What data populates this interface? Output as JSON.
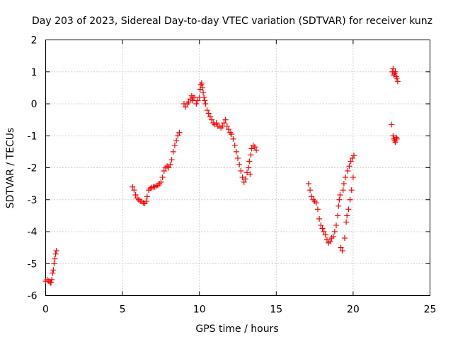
{
  "chart_data": {
    "type": "scatter",
    "title": "Day 203 of 2023, Sidereal Day-to-day VTEC variation (SDTVAR) for receiver kunz",
    "xlabel": "GPS time / hours",
    "ylabel": "SDTVAR / TECUs",
    "xlim": [
      0,
      25
    ],
    "ylim": [
      -6,
      2
    ],
    "xticks": [
      0,
      5,
      10,
      15,
      20,
      25
    ],
    "yticks": [
      -6,
      -5,
      -4,
      -3,
      -2,
      -1,
      0,
      1,
      2
    ],
    "xtick_labels": [
      "0",
      "5",
      "10",
      "15",
      "20",
      "25"
    ],
    "ytick_labels": [
      "-6",
      "-5",
      "-4",
      "-3",
      "-2",
      "-1",
      "0",
      "1",
      "2"
    ],
    "grid": true,
    "legend": "none",
    "marker": "+",
    "color": "#ff0000",
    "series": [
      {
        "points": [
          [
            0.0,
            -5.55
          ],
          [
            0.1,
            -5.5
          ],
          [
            0.2,
            -5.55
          ],
          [
            0.3,
            -5.6
          ],
          [
            0.35,
            -5.6
          ],
          [
            0.4,
            -5.5
          ],
          [
            0.45,
            -5.3
          ],
          [
            0.5,
            -5.2
          ],
          [
            0.55,
            -5.0
          ],
          [
            0.6,
            -4.85
          ],
          [
            0.65,
            -4.7
          ],
          [
            0.7,
            -4.6
          ]
        ]
      },
      {
        "points": [
          [
            5.65,
            -2.6
          ],
          [
            5.75,
            -2.7
          ],
          [
            5.85,
            -2.85
          ],
          [
            5.95,
            -2.95
          ],
          [
            6.05,
            -3.0
          ],
          [
            6.15,
            -3.05
          ],
          [
            6.25,
            -3.05
          ],
          [
            6.35,
            -3.1
          ],
          [
            6.45,
            -3.12
          ],
          [
            6.55,
            -3.05
          ],
          [
            6.6,
            -2.9
          ],
          [
            6.7,
            -2.7
          ],
          [
            6.8,
            -2.65
          ],
          [
            6.9,
            -2.62
          ],
          [
            7.0,
            -2.6
          ],
          [
            7.1,
            -2.6
          ],
          [
            7.2,
            -2.57
          ],
          [
            7.3,
            -2.55
          ],
          [
            7.4,
            -2.5
          ],
          [
            7.5,
            -2.45
          ],
          [
            7.6,
            -2.3
          ],
          [
            7.7,
            -2.1
          ],
          [
            7.8,
            -2.0
          ],
          [
            7.9,
            -1.95
          ],
          [
            8.0,
            -2.0
          ],
          [
            8.1,
            -1.9
          ],
          [
            8.2,
            -1.75
          ],
          [
            8.3,
            -1.5
          ],
          [
            8.4,
            -1.3
          ],
          [
            8.5,
            -1.15
          ],
          [
            8.6,
            -1.0
          ],
          [
            8.7,
            -0.9
          ]
        ]
      },
      {
        "points": [
          [
            9.0,
            0.0
          ],
          [
            9.1,
            -0.1
          ],
          [
            9.2,
            0.0
          ],
          [
            9.3,
            0.05
          ],
          [
            9.4,
            0.15
          ],
          [
            9.5,
            0.25
          ],
          [
            9.55,
            0.1
          ],
          [
            9.6,
            0.2
          ],
          [
            9.7,
            0.2
          ],
          [
            9.8,
            0.0
          ],
          [
            9.9,
            0.1
          ],
          [
            10.0,
            0.2
          ],
          [
            10.05,
            0.45
          ],
          [
            10.1,
            0.6
          ],
          [
            10.15,
            0.65
          ],
          [
            10.2,
            0.5
          ],
          [
            10.25,
            0.35
          ],
          [
            10.3,
            0.2
          ],
          [
            10.35,
            0.1
          ],
          [
            10.4,
            0.0
          ],
          [
            10.5,
            -0.2
          ],
          [
            10.6,
            -0.3
          ],
          [
            10.7,
            -0.4
          ],
          [
            10.8,
            -0.5
          ],
          [
            10.9,
            -0.6
          ],
          [
            11.0,
            -0.65
          ],
          [
            11.1,
            -0.6
          ],
          [
            11.2,
            -0.7
          ],
          [
            11.3,
            -0.7
          ],
          [
            11.4,
            -0.75
          ],
          [
            11.5,
            -0.7
          ],
          [
            11.6,
            -0.6
          ],
          [
            11.7,
            -0.5
          ],
          [
            11.8,
            -0.7
          ],
          [
            11.9,
            -0.8
          ],
          [
            12.0,
            -0.9
          ],
          [
            12.1,
            -0.95
          ],
          [
            12.2,
            -1.1
          ],
          [
            12.3,
            -1.3
          ],
          [
            12.4,
            -1.5
          ],
          [
            12.5,
            -1.7
          ],
          [
            12.6,
            -1.9
          ],
          [
            12.7,
            -2.1
          ],
          [
            12.8,
            -2.3
          ],
          [
            12.9,
            -2.45
          ],
          [
            13.0,
            -2.35
          ],
          [
            13.1,
            -2.15
          ],
          [
            13.2,
            -2.0
          ],
          [
            13.25,
            -1.8
          ],
          [
            13.3,
            -2.2
          ],
          [
            13.35,
            -1.6
          ],
          [
            13.4,
            -1.4
          ],
          [
            13.5,
            -1.3
          ],
          [
            13.6,
            -1.35
          ],
          [
            13.7,
            -1.45
          ]
        ]
      },
      {
        "points": [
          [
            17.1,
            -2.5
          ],
          [
            17.2,
            -2.7
          ],
          [
            17.3,
            -2.9
          ],
          [
            17.4,
            -3.0
          ],
          [
            17.5,
            -3.05
          ],
          [
            17.6,
            -3.1
          ],
          [
            17.7,
            -3.3
          ],
          [
            17.8,
            -3.6
          ],
          [
            17.9,
            -3.8
          ],
          [
            18.0,
            -3.9
          ],
          [
            18.1,
            -4.0
          ],
          [
            18.2,
            -4.1
          ],
          [
            18.3,
            -4.25
          ],
          [
            18.4,
            -4.35
          ],
          [
            18.5,
            -4.3
          ],
          [
            18.6,
            -4.2
          ],
          [
            18.7,
            -4.15
          ],
          [
            18.8,
            -4.0
          ],
          [
            18.9,
            -3.8
          ],
          [
            19.0,
            -3.5
          ],
          [
            19.05,
            -3.2
          ],
          [
            19.1,
            -3.0
          ],
          [
            19.15,
            -2.85
          ],
          [
            19.2,
            -4.5
          ],
          [
            19.3,
            -4.6
          ],
          [
            19.35,
            -2.7
          ],
          [
            19.4,
            -2.5
          ],
          [
            19.45,
            -4.2
          ],
          [
            19.5,
            -2.3
          ],
          [
            19.55,
            -3.7
          ],
          [
            19.6,
            -3.5
          ],
          [
            19.65,
            -2.1
          ],
          [
            19.7,
            -3.3
          ],
          [
            19.75,
            -1.95
          ],
          [
            19.8,
            -3.0
          ],
          [
            19.85,
            -1.8
          ],
          [
            19.9,
            -2.7
          ],
          [
            19.95,
            -1.7
          ],
          [
            20.0,
            -2.3
          ],
          [
            20.05,
            -1.62
          ]
        ]
      },
      {
        "points": [
          [
            22.5,
            -0.65
          ],
          [
            22.55,
            1.0
          ],
          [
            22.6,
            1.1
          ],
          [
            22.65,
            0.9
          ],
          [
            22.7,
            0.95
          ],
          [
            22.75,
            1.0
          ],
          [
            22.8,
            0.85
          ],
          [
            22.85,
            0.8
          ],
          [
            22.9,
            0.7
          ],
          [
            22.6,
            -1.0
          ],
          [
            22.65,
            -1.1
          ],
          [
            22.7,
            -1.15
          ],
          [
            22.75,
            -1.2
          ],
          [
            22.8,
            -1.05
          ],
          [
            22.85,
            -1.1
          ]
        ]
      }
    ]
  }
}
